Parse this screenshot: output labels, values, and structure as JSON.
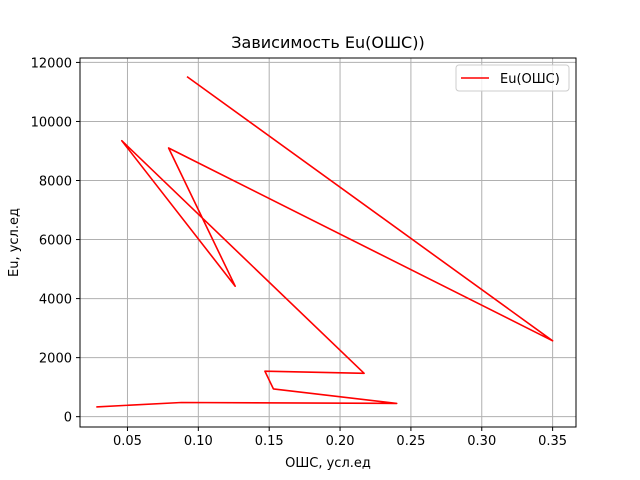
{
  "chart_data": {
    "type": "line",
    "title": "Зависимость Eu(ОШС))",
    "xlabel": "ОШС, усл.ед",
    "ylabel": "Eu, усл.ед",
    "xlim": [
      0.0165,
      0.3665
    ],
    "ylim": [
      -350,
      12150
    ],
    "xticks": [
      0.05,
      0.1,
      0.15,
      0.2,
      0.25,
      0.3,
      0.35
    ],
    "xtick_labels": [
      "0.05",
      "0.10",
      "0.15",
      "0.20",
      "0.25",
      "0.30",
      "0.35"
    ],
    "yticks": [
      0,
      2000,
      4000,
      6000,
      8000,
      10000,
      12000
    ],
    "ytick_labels": [
      "0",
      "2000",
      "4000",
      "6000",
      "8000",
      "10000",
      "12000"
    ],
    "grid": true,
    "legend_position": "top-right",
    "series": [
      {
        "name": "Eu(ОШС)",
        "color": "#ff0000",
        "x": [
          0.092,
          0.35,
          0.079,
          0.126,
          0.046,
          0.217,
          0.147,
          0.153,
          0.24,
          0.088,
          0.028
        ],
        "y": [
          11520,
          2570,
          9100,
          4420,
          9350,
          1470,
          1540,
          940,
          450,
          480,
          330
        ]
      }
    ]
  }
}
